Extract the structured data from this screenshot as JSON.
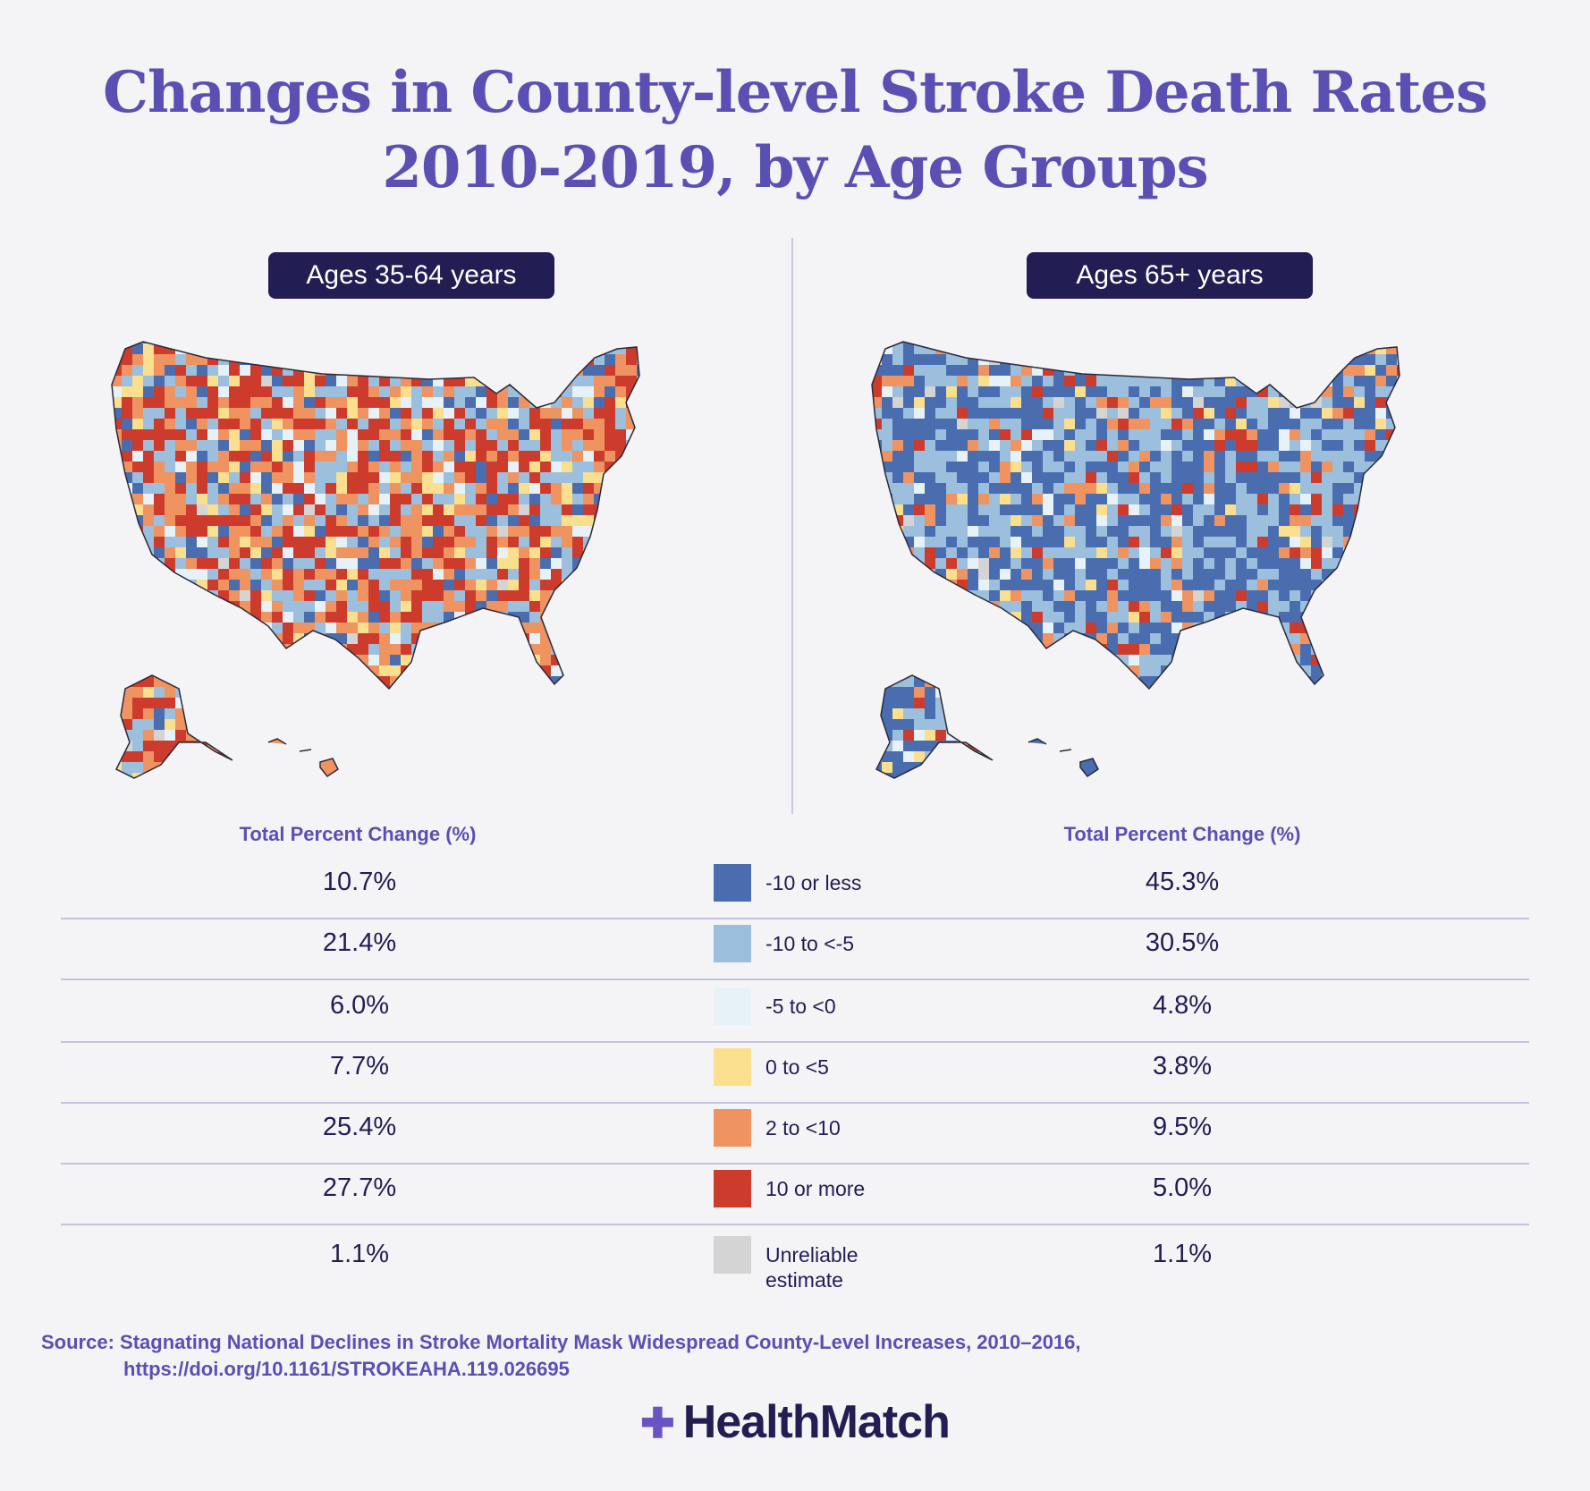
{
  "title": {
    "line1": "Changes in County-level Stroke Death Rates",
    "line2": "2010-2019, by Age Groups"
  },
  "panels": {
    "left": {
      "label": "Ages 35-64 years"
    },
    "right": {
      "label": "Ages 65+ years"
    }
  },
  "table": {
    "col_header_left": "Total Percent Change (%)",
    "col_header_right": "Total Percent Change (%)",
    "rows": [
      {
        "left": "10.7%",
        "label": "-10 or less",
        "right": "45.3%",
        "color": "#4a6db0"
      },
      {
        "left": "21.4%",
        "label": "-10 to <-5",
        "right": "30.5%",
        "color": "#9bbfdc"
      },
      {
        "left": "6.0%",
        "label": "-5 to <0",
        "right": "4.8%",
        "color": "#e6f1f8"
      },
      {
        "left": "7.7%",
        "label": "0 to <5",
        "right": "3.8%",
        "color": "#f9df8e"
      },
      {
        "left": "25.4%",
        "label": "2 to <10",
        "right": "9.5%",
        "color": "#ef9360"
      },
      {
        "left": "27.7%",
        "label": "10  or more",
        "right": "5.0%",
        "color": "#cd3b2c"
      },
      {
        "left": "1.1%",
        "label": "Unreliable\nestimate",
        "right": "1.1%",
        "color": "#d4d4d4"
      }
    ]
  },
  "source": {
    "line1": "Source: Stagnating National Declines in Stroke Mortality Mask Widespread County-Level Increases, 2010–2016,",
    "line2": "https://doi.org/10.1161/STROKEAHA.119.026695"
  },
  "brand": {
    "name": "HealthMatch",
    "icon": "plus-cross-icon"
  }
}
